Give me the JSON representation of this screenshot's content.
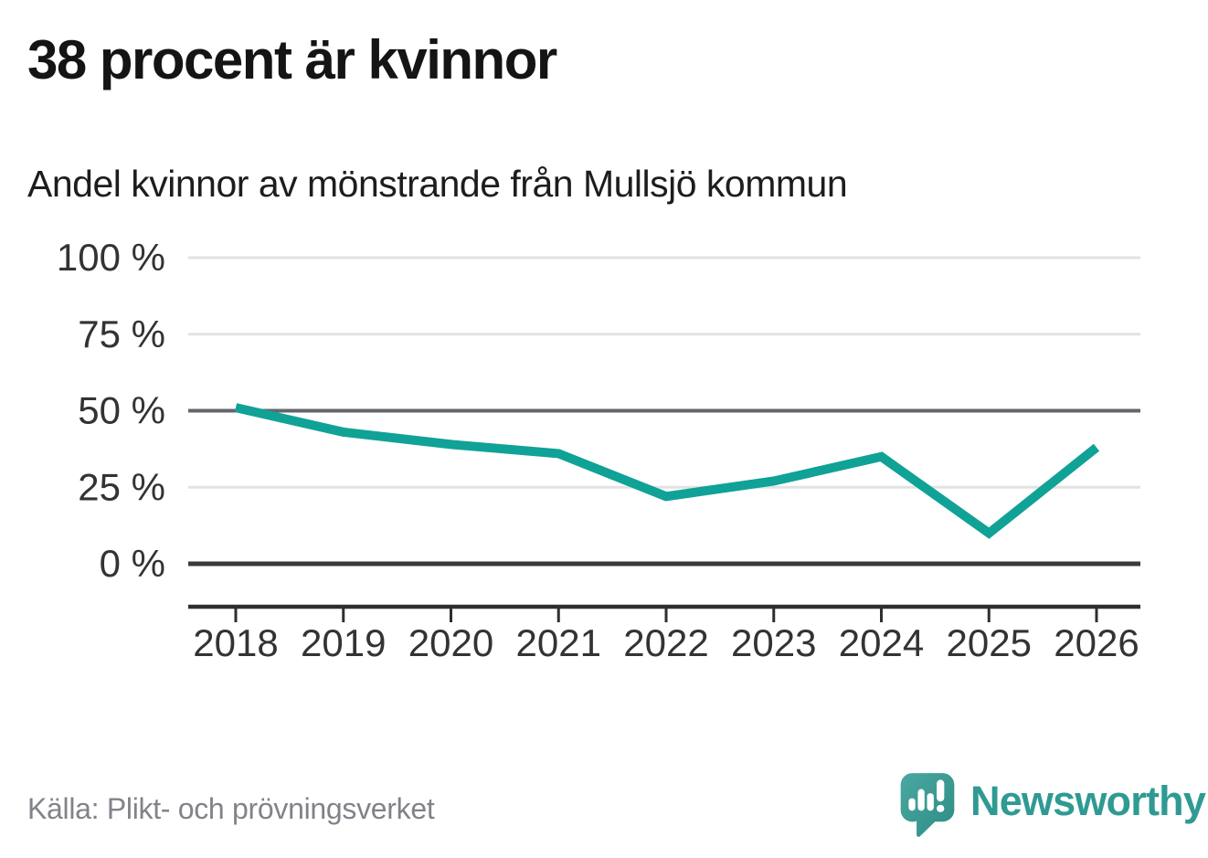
{
  "header": {
    "title": "38 procent är kvinnor",
    "subtitle": "Andel kvinnor av mönstrande från Mullsjö kommun"
  },
  "footer": {
    "source": "Källa: Plikt- och prövningsverket",
    "brand": "Newsworthy"
  },
  "icons": {
    "logo": "newsworthy-speech-bubble-chart-icon"
  },
  "colors": {
    "title_text": "#141414",
    "subtitle_text": "#1d1d1d",
    "line": "#10a296",
    "grid_light": "#e2e2e2",
    "grid_mid": "#64646c",
    "grid_zero": "#3a3a3a",
    "axis": "#2f2f2f",
    "tick_text": "#333333",
    "source_text": "#82828a",
    "brand_teal": "#2f9a93",
    "logo_light": "#4aa8a0",
    "logo_dark": "#2d8c85"
  },
  "chart_data": {
    "type": "line",
    "title": "38 procent är kvinnor",
    "subtitle": "Andel kvinnor av mönstrande från Mullsjö kommun",
    "series_name": "Andel kvinnor av mönstrande (%)",
    "x": [
      2018,
      2019,
      2020,
      2021,
      2022,
      2023,
      2024,
      2025,
      2026
    ],
    "xtick_labels": [
      "2018",
      "2019",
      "2020",
      "2021",
      "2022",
      "2023",
      "2024",
      "2025",
      "2026"
    ],
    "values": [
      51,
      43,
      39,
      36,
      22,
      27,
      35,
      10,
      38
    ],
    "unit": "%",
    "ylim": [
      0,
      100
    ],
    "yticks": [
      100,
      75,
      50,
      25,
      0
    ],
    "ytick_labels": [
      "100 %",
      "75 %",
      "50 %",
      "25 %",
      "0 %"
    ],
    "reference_line": 50,
    "grid": true,
    "legend": "none",
    "xlabel": "",
    "ylabel": ""
  }
}
